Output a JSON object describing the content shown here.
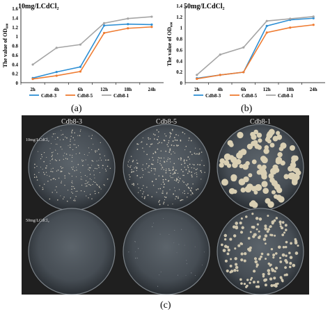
{
  "chart_data": [
    {
      "type": "line",
      "title": "10mg/LCdCl₂",
      "ylabel": "The value of OD₆₀₀",
      "categories": [
        "2h",
        "4h",
        "6h",
        "12h",
        "18h",
        "24h"
      ],
      "ylim": [
        0,
        1.6
      ],
      "yticks": [
        "0",
        "0.2",
        "0.4",
        "0.6",
        "0.8",
        "1",
        "1.2",
        "1.4",
        "1.6"
      ],
      "legend": "bottom",
      "series": [
        {
          "name": "Cdb8-3",
          "values": [
            0.1,
            0.23,
            0.34,
            1.23,
            1.26,
            1.25
          ]
        },
        {
          "name": "Cdb8-5",
          "values": [
            0.08,
            0.15,
            0.24,
            1.07,
            1.17,
            1.2
          ]
        },
        {
          "name": "Cdb8-1",
          "values": [
            0.39,
            0.75,
            0.82,
            1.28,
            1.38,
            1.42
          ]
        }
      ]
    },
    {
      "type": "line",
      "title": "50mg/LCdCl₂",
      "ylabel": "The value of OD₆₀₀",
      "categories": [
        "2h",
        "4h",
        "6h",
        "12h",
        "18h",
        "24h"
      ],
      "ylim": [
        0,
        1.4
      ],
      "yticks": [
        "0",
        "0.2",
        "0.4",
        "0.6",
        "0.8",
        "1",
        "1.2",
        "1.4"
      ],
      "legend": "bottom",
      "series": [
        {
          "name": "Cdb8-3",
          "values": [
            0.08,
            0.14,
            0.19,
            1.03,
            1.14,
            1.17
          ]
        },
        {
          "name": "Cdb8-5",
          "values": [
            0.07,
            0.14,
            0.19,
            0.91,
            1.0,
            1.05
          ]
        },
        {
          "name": "Cdb8-1",
          "values": [
            0.14,
            0.51,
            0.64,
            1.12,
            1.16,
            1.2
          ]
        }
      ]
    }
  ],
  "colors": {
    "Cdb8-3": "#2e8fd4",
    "Cdb8-5": "#ef7c32",
    "Cdb8-1": "#a5a5a5"
  },
  "labels": {
    "a": "(a)",
    "b": "(b)",
    "c": "(c)"
  },
  "plates": {
    "columns": [
      "Cdb8-3",
      "Cdb8-5",
      "Cdb8-1"
    ],
    "row1": "10mg/LCdCl₂",
    "row2": "50mg/LCdCl₂"
  }
}
